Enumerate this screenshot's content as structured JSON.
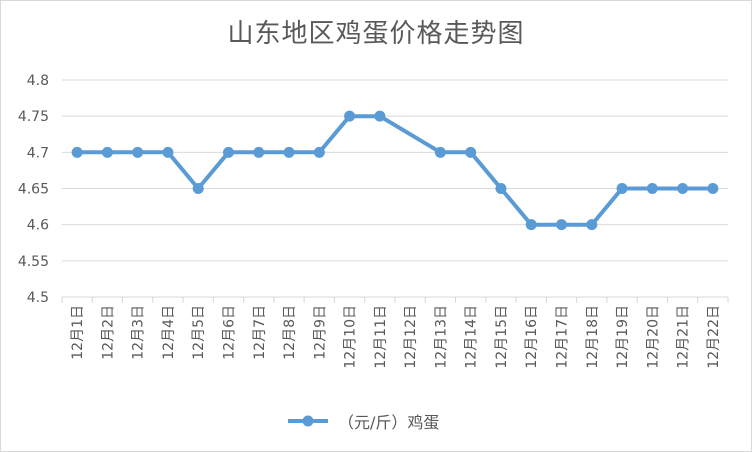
{
  "chart_data": {
    "type": "line",
    "title": "山东地区鸡蛋价格走势图",
    "xlabel": "",
    "ylabel": "",
    "ylim": [
      4.5,
      4.8
    ],
    "yticks": [
      "4.5",
      "4.55",
      "4.6",
      "4.65",
      "4.7",
      "4.75",
      "4.8"
    ],
    "categories": [
      "12月1日",
      "12月2日",
      "12月3日",
      "12月4日",
      "12月5日",
      "12月6日",
      "12月7日",
      "12月8日",
      "12月9日",
      "12月10日",
      "12月11日",
      "12月12日",
      "12月13日",
      "12月14日",
      "12月15日",
      "12月16日",
      "12月17日",
      "12月18日",
      "12月19日",
      "12月20日",
      "12月21日",
      "12月22日"
    ],
    "series": [
      {
        "name": "（元/斤）鸡蛋",
        "color": "#5b9bd5",
        "values": [
          4.7,
          4.7,
          4.7,
          4.7,
          4.65,
          4.7,
          4.7,
          4.7,
          4.7,
          4.75,
          4.75,
          null,
          4.7,
          4.7,
          4.65,
          4.6,
          4.6,
          4.6,
          4.65,
          4.65,
          4.65,
          4.65
        ]
      }
    ],
    "grid": true,
    "legend": "bottom"
  }
}
